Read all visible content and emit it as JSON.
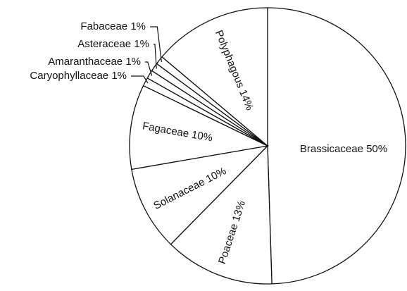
{
  "chart_data": {
    "type": "pie",
    "categories": [
      "Brassicaceae",
      "Poaceae",
      "Solanaceae",
      "Fagaceae",
      "Caryophyllaceae",
      "Amaranthaceae",
      "Asteraceae",
      "Fabaceae",
      "Polyphagous"
    ],
    "values": [
      50,
      13,
      10,
      10,
      1,
      1,
      1,
      1,
      14
    ],
    "value_labels": [
      "50%",
      "13%",
      "10%",
      "10%",
      "1%",
      "1%",
      "1%",
      "1%",
      "14%"
    ],
    "color": "#ffffff",
    "edge_color": "#111111"
  }
}
